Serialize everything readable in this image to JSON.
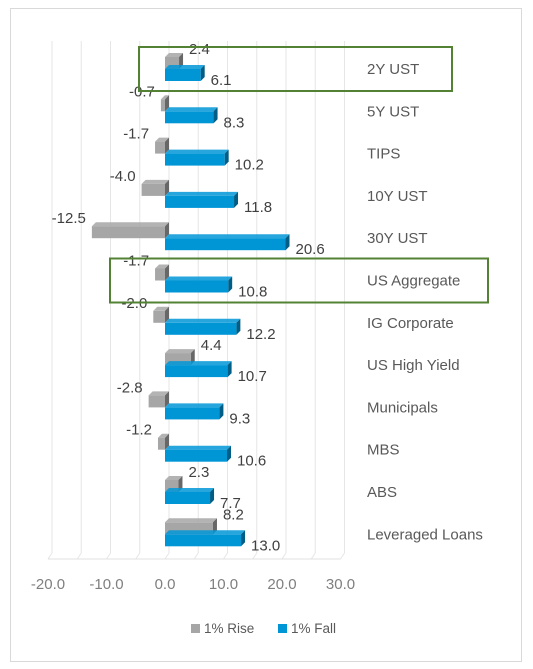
{
  "chart_data": {
    "type": "bar",
    "orientation": "horizontal",
    "categories": [
      "2Y UST",
      "5Y UST",
      "TIPS",
      "10Y UST",
      "30Y UST",
      "US Aggregate",
      "IG Corporate",
      "US High Yield",
      "Municipals",
      "MBS",
      "ABS",
      "Leveraged Loans"
    ],
    "series": [
      {
        "name": "1% Rise",
        "color": "#a6a6a6",
        "values": [
          2.4,
          -0.7,
          -1.7,
          -4.0,
          -12.5,
          -1.7,
          -2.0,
          4.4,
          -2.8,
          -1.2,
          2.3,
          8.2
        ]
      },
      {
        "name": "1% Fall",
        "color": "#0096d6",
        "values": [
          6.1,
          8.3,
          10.2,
          11.8,
          20.6,
          10.8,
          12.2,
          10.7,
          9.3,
          10.6,
          7.7,
          13.0
        ]
      }
    ],
    "value_labels": {
      "1% Rise": [
        "2.4",
        "-0.7",
        "-1.7",
        "-4.0",
        "-12.5",
        "-1.7",
        "-2.0",
        "4.4",
        "-2.8",
        "-1.2",
        "2.3",
        "8.2"
      ],
      "1% Fall": [
        "6.1",
        "8.3",
        "10.2",
        "11.8",
        "20.6",
        "10.8",
        "12.2",
        "10.7",
        "9.3",
        "10.6",
        "7.7",
        "13.0"
      ]
    },
    "xlim": [
      -20,
      30
    ],
    "x_ticks": [
      "-20.0",
      "-10.0",
      "0.0",
      "10.0",
      "20.0",
      "30.0"
    ],
    "grid": true,
    "style": "3d",
    "legend_position": "bottom",
    "highlighted_categories": [
      "2Y UST",
      "US Aggregate"
    ],
    "highlight_color": "#548235"
  }
}
